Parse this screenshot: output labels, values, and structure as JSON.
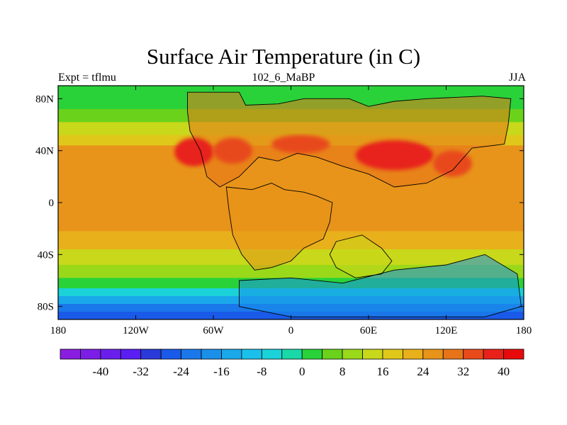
{
  "title": "Surface Air Temperature (in C)",
  "subtitle_left": "Expt = tflmu",
  "subtitle_center": "102_6_MaBP",
  "subtitle_right": "JJA",
  "map": {
    "lon_range": [
      -180,
      180
    ],
    "lat_range": [
      -90,
      90
    ],
    "lon_ticks": [
      {
        "value": -180,
        "label": "180"
      },
      {
        "value": -120,
        "label": "120W"
      },
      {
        "value": -60,
        "label": "60W"
      },
      {
        "value": 0,
        "label": "0"
      },
      {
        "value": 60,
        "label": "60E"
      },
      {
        "value": 120,
        "label": "120E"
      },
      {
        "value": 180,
        "label": "180"
      }
    ],
    "lat_ticks": [
      {
        "value": 80,
        "label": "80N"
      },
      {
        "value": 40,
        "label": "40N"
      },
      {
        "value": 0,
        "label": "0"
      },
      {
        "value": -40,
        "label": "40S"
      },
      {
        "value": -80,
        "label": "80S"
      }
    ]
  },
  "colorbar": {
    "min": -48,
    "step": 4,
    "colors": [
      "#8a1ee0",
      "#7c1ee6",
      "#6a1eec",
      "#5a1ef2",
      "#2a3ad8",
      "#1a5ae8",
      "#1a78ea",
      "#1a90ea",
      "#1aa8ea",
      "#1ac0ea",
      "#1ad2d8",
      "#1ad8a8",
      "#2ad23a",
      "#6ad21a",
      "#9ad81a",
      "#c8d81a",
      "#e0c81a",
      "#e8b01a",
      "#e8941a",
      "#e8741a",
      "#e84a1a",
      "#e8221a",
      "#e80a0a"
    ],
    "labels": [
      {
        "value": -40,
        "label": "-40"
      },
      {
        "value": -32,
        "label": "-32"
      },
      {
        "value": -24,
        "label": "-24"
      },
      {
        "value": -16,
        "label": "-16"
      },
      {
        "value": -8,
        "label": "-8"
      },
      {
        "value": 0,
        "label": "0"
      },
      {
        "value": 8,
        "label": "8"
      },
      {
        "value": 16,
        "label": "16"
      },
      {
        "value": 24,
        "label": "24"
      },
      {
        "value": 32,
        "label": "32"
      },
      {
        "value": 40,
        "label": "40"
      }
    ]
  },
  "fill_bands": [
    {
      "lat": [
        72,
        90
      ],
      "color": "#2ad23a"
    },
    {
      "lat": [
        62,
        72
      ],
      "color": "#6ad21a"
    },
    {
      "lat": [
        52,
        62
      ],
      "color": "#c8d81a"
    },
    {
      "lat": [
        44,
        52
      ],
      "color": "#e0c81a"
    },
    {
      "lat": [
        -22,
        44
      ],
      "color": "#e8941a"
    },
    {
      "lat": [
        -36,
        -22
      ],
      "color": "#e8b01a"
    },
    {
      "lat": [
        -48,
        -36
      ],
      "color": "#c8d81a"
    },
    {
      "lat": [
        -58,
        -48
      ],
      "color": "#9ad81a"
    },
    {
      "lat": [
        -66,
        -58
      ],
      "color": "#2ad23a"
    },
    {
      "lat": [
        -72,
        -66
      ],
      "color": "#1ad2d8"
    },
    {
      "lat": [
        -78,
        -72
      ],
      "color": "#1aa8ea"
    },
    {
      "lat": [
        -84,
        -78
      ],
      "color": "#1a78ea"
    },
    {
      "lat": [
        -90,
        -84
      ],
      "color": "#1a5ae8"
    }
  ],
  "landmasses": [
    {
      "name": "laurasia",
      "color": "#e8741a",
      "outline": [
        [
          -80,
          85
        ],
        [
          -40,
          85
        ],
        [
          -35,
          75
        ],
        [
          -10,
          76
        ],
        [
          10,
          80
        ],
        [
          45,
          80
        ],
        [
          60,
          74
        ],
        [
          80,
          78
        ],
        [
          105,
          80
        ],
        [
          148,
          82
        ],
        [
          170,
          80
        ],
        [
          168,
          60
        ],
        [
          165,
          45
        ],
        [
          140,
          42
        ],
        [
          125,
          25
        ],
        [
          105,
          15
        ],
        [
          80,
          12
        ],
        [
          60,
          22
        ],
        [
          40,
          28
        ],
        [
          20,
          35
        ],
        [
          5,
          38
        ],
        [
          -10,
          32
        ],
        [
          -25,
          35
        ],
        [
          -40,
          20
        ],
        [
          -55,
          12
        ],
        [
          -65,
          20
        ],
        [
          -70,
          40
        ],
        [
          -78,
          55
        ],
        [
          -80,
          70
        ]
      ]
    },
    {
      "name": "gondwana-west",
      "color": "#e8941a",
      "outline": [
        [
          -50,
          12
        ],
        [
          -30,
          10
        ],
        [
          -15,
          15
        ],
        [
          -5,
          10
        ],
        [
          10,
          8
        ],
        [
          20,
          5
        ],
        [
          32,
          0
        ],
        [
          30,
          -15
        ],
        [
          25,
          -28
        ],
        [
          10,
          -35
        ],
        [
          0,
          -45
        ],
        [
          -15,
          -50
        ],
        [
          -28,
          -52
        ],
        [
          -38,
          -40
        ],
        [
          -45,
          -25
        ],
        [
          -48,
          -5
        ]
      ]
    },
    {
      "name": "gondwana-east",
      "color": "#c8d81a",
      "outline": [
        [
          35,
          -30
        ],
        [
          55,
          -25
        ],
        [
          70,
          -35
        ],
        [
          78,
          -45
        ],
        [
          70,
          -55
        ],
        [
          50,
          -58
        ],
        [
          35,
          -50
        ],
        [
          30,
          -40
        ]
      ]
    },
    {
      "name": "antarctica",
      "color": "#1a90ea",
      "outline": [
        [
          -40,
          -60
        ],
        [
          0,
          -58
        ],
        [
          40,
          -62
        ],
        [
          80,
          -52
        ],
        [
          120,
          -48
        ],
        [
          150,
          -40
        ],
        [
          175,
          -55
        ],
        [
          178,
          -80
        ],
        [
          150,
          -88
        ],
        [
          60,
          -88
        ],
        [
          0,
          -88
        ],
        [
          -40,
          -80
        ]
      ]
    }
  ],
  "hot_spots": [
    {
      "name": "north-america-west",
      "color": "#e8221a",
      "lon": [
        -90,
        -60
      ],
      "lat": [
        28,
        50
      ]
    },
    {
      "name": "north-america-central",
      "color": "#e84a1a",
      "lon": [
        -60,
        -30
      ],
      "lat": [
        30,
        50
      ]
    },
    {
      "name": "europe",
      "color": "#e84a1a",
      "lon": [
        -15,
        30
      ],
      "lat": [
        38,
        52
      ]
    },
    {
      "name": "central-asia",
      "color": "#e8221a",
      "lon": [
        50,
        110
      ],
      "lat": [
        25,
        48
      ]
    },
    {
      "name": "east-asia",
      "color": "#e84a1a",
      "lon": [
        110,
        140
      ],
      "lat": [
        20,
        40
      ]
    }
  ]
}
